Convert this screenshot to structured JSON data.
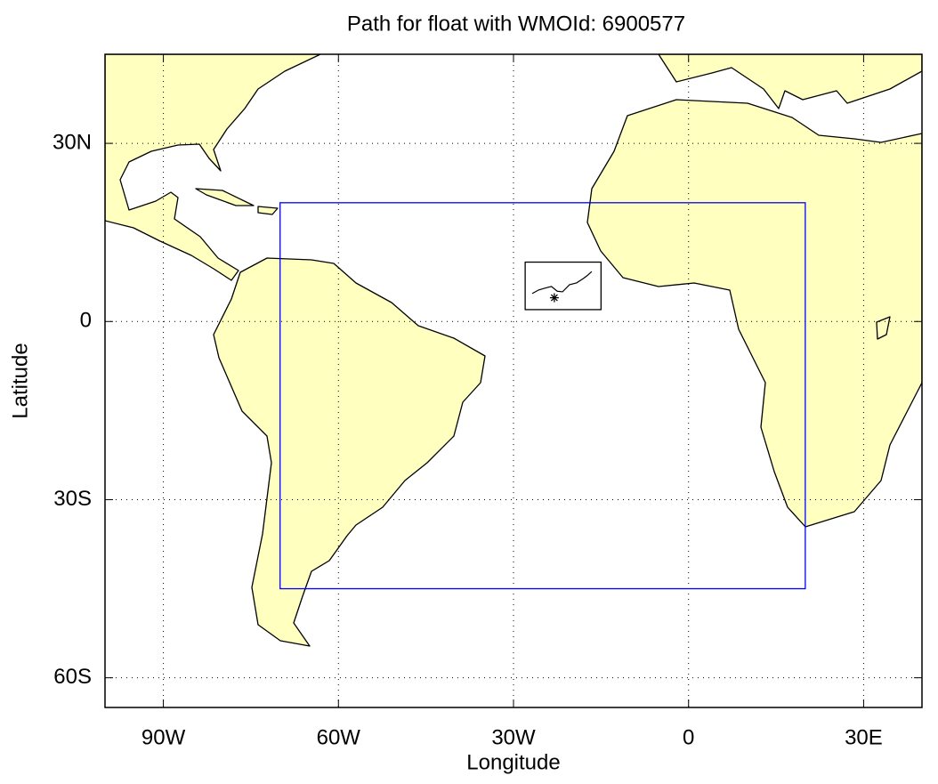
{
  "chart_data": {
    "type": "map",
    "title": "Path for float with WMOId: 6900577",
    "xlabel": "Longitude",
    "ylabel": "Latitude",
    "xlim": [
      -100,
      40
    ],
    "ylim": [
      -65,
      45
    ],
    "xticks": [
      {
        "value": -90,
        "label": "90W"
      },
      {
        "value": -60,
        "label": "60W"
      },
      {
        "value": -30,
        "label": "30W"
      },
      0,
      {
        "value": 30,
        "label": "30E"
      }
    ],
    "yticks": [
      {
        "value": 30,
        "label": "30N"
      },
      0,
      {
        "value": -30,
        "label": "30S"
      },
      {
        "value": -60,
        "label": "60S"
      }
    ],
    "grid": true,
    "land_color": "#ffffc0",
    "region": {
      "color": "#0000ff",
      "lon": [
        -70,
        20
      ],
      "lat": [
        -45,
        20
      ]
    },
    "inset": {
      "color": "#000000",
      "lon": [
        -28,
        -15
      ],
      "lat": [
        2,
        10
      ]
    },
    "float_path": {
      "color": "#000000",
      "x": [
        -26.8,
        -25.7,
        -24.7,
        -23.5,
        -22.5,
        -21.6,
        -20.4,
        -19.2,
        -18.1,
        -17.4,
        -16.6
      ],
      "y": [
        4.7,
        5.3,
        5.6,
        5.9,
        5.1,
        5.0,
        6.2,
        6.5,
        7.2,
        7.7,
        8.4
      ]
    },
    "last_position": {
      "x": -23.0,
      "y": 4.0
    }
  }
}
